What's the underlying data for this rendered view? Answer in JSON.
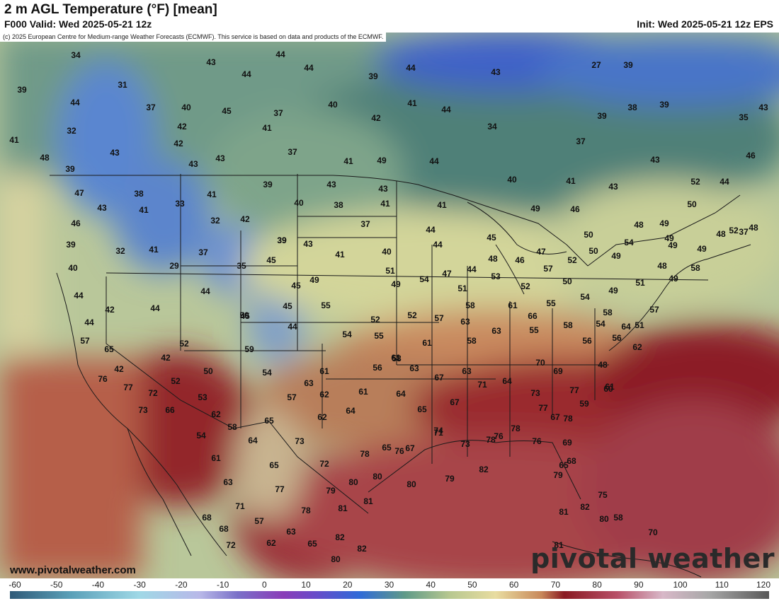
{
  "header": {
    "title": "2 m AGL Temperature (°F) [mean]",
    "valid": "F000 Valid: Wed 2025-05-21 12z",
    "init": "Init: Wed 2025-05-21 12z EPS",
    "copyright": "(c) 2025 European Centre for Medium-range Weather Forecasts (ECMWF). This service is based on data and products of the ECMWF."
  },
  "footer": {
    "website": "www.pivotalweather.com",
    "brand": "pivotal weather"
  },
  "colors": {
    "cold": "#3f68d8",
    "cool": "#7fa2a0",
    "mild": "#d8d8a0",
    "warm": "#c88a5a",
    "hot": "#8f1d28",
    "ocean_warm": "#a8444a"
  },
  "scale": {
    "labels": [
      "-60",
      "-50",
      "-40",
      "-30",
      "-20",
      "-10",
      "0",
      "10",
      "20",
      "30",
      "40",
      "50",
      "60",
      "70",
      "80",
      "90",
      "100",
      "110",
      "120"
    ]
  },
  "temps": [
    {
      "v": "34"
    },
    {
      "v": "44"
    },
    {
      "v": "43"
    },
    {
      "v": "44"
    },
    {
      "v": "44"
    },
    {
      "v": "44"
    },
    {
      "v": "39"
    },
    {
      "v": "43"
    },
    {
      "v": "27"
    },
    {
      "v": "39"
    },
    {
      "v": "39"
    },
    {
      "v": "31"
    },
    {
      "v": "44"
    },
    {
      "v": "37"
    },
    {
      "v": "40"
    },
    {
      "v": "45"
    },
    {
      "v": "40"
    },
    {
      "v": "41"
    },
    {
      "v": "44"
    },
    {
      "v": "37"
    },
    {
      "v": "39"
    },
    {
      "v": "38"
    },
    {
      "v": "39"
    },
    {
      "v": "43"
    },
    {
      "v": "35"
    },
    {
      "v": "32"
    },
    {
      "v": "42"
    },
    {
      "v": "41"
    },
    {
      "v": "42"
    },
    {
      "v": "34"
    },
    {
      "v": "43"
    },
    {
      "v": "42"
    },
    {
      "v": "37"
    },
    {
      "v": "43"
    },
    {
      "v": "37"
    },
    {
      "v": "41"
    },
    {
      "v": "49"
    },
    {
      "v": "44"
    },
    {
      "v": "43"
    },
    {
      "v": "46"
    },
    {
      "v": "41"
    },
    {
      "v": "43"
    },
    {
      "v": "48"
    },
    {
      "v": "39"
    },
    {
      "v": "39"
    },
    {
      "v": "43"
    },
    {
      "v": "43"
    },
    {
      "v": "40"
    },
    {
      "v": "41"
    },
    {
      "v": "43"
    },
    {
      "v": "52"
    },
    {
      "v": "44"
    },
    {
      "v": "47"
    },
    {
      "v": "38"
    },
    {
      "v": "41"
    },
    {
      "v": "40"
    },
    {
      "v": "38"
    },
    {
      "v": "41"
    },
    {
      "v": "41"
    },
    {
      "v": "49"
    },
    {
      "v": "46"
    },
    {
      "v": "50"
    },
    {
      "v": "43"
    },
    {
      "v": "41"
    },
    {
      "v": "33"
    },
    {
      "v": "32"
    },
    {
      "v": "42"
    },
    {
      "v": "37"
    },
    {
      "v": "44"
    },
    {
      "v": "48"
    },
    {
      "v": "49"
    },
    {
      "v": "48"
    },
    {
      "v": "48"
    },
    {
      "v": "46"
    },
    {
      "v": "39"
    },
    {
      "v": "43"
    },
    {
      "v": "45"
    },
    {
      "v": "50"
    },
    {
      "v": "54"
    },
    {
      "v": "49"
    },
    {
      "v": "49"
    },
    {
      "v": "39"
    },
    {
      "v": "32"
    },
    {
      "v": "41"
    },
    {
      "v": "37"
    },
    {
      "v": "39"
    },
    {
      "v": "41"
    },
    {
      "v": "40"
    },
    {
      "v": "44"
    },
    {
      "v": "47"
    },
    {
      "v": "50"
    },
    {
      "v": "49"
    },
    {
      "v": "37"
    },
    {
      "v": "40"
    },
    {
      "v": "29"
    },
    {
      "v": "35"
    },
    {
      "v": "45"
    },
    {
      "v": "51"
    },
    {
      "v": "47"
    },
    {
      "v": "44"
    },
    {
      "v": "48"
    },
    {
      "v": "46"
    },
    {
      "v": "52"
    },
    {
      "v": "48"
    },
    {
      "v": "52"
    },
    {
      "v": "49"
    },
    {
      "v": "58"
    },
    {
      "v": "44"
    },
    {
      "v": "44"
    },
    {
      "v": "45"
    },
    {
      "v": "49"
    },
    {
      "v": "49"
    },
    {
      "v": "54"
    },
    {
      "v": "51"
    },
    {
      "v": "53"
    },
    {
      "v": "52"
    },
    {
      "v": "57"
    },
    {
      "v": "50"
    },
    {
      "v": "49"
    },
    {
      "v": "51"
    },
    {
      "v": "49"
    },
    {
      "v": "42"
    },
    {
      "v": "44"
    },
    {
      "v": "45"
    },
    {
      "v": "45"
    },
    {
      "v": "55"
    },
    {
      "v": "58"
    },
    {
      "v": "61"
    },
    {
      "v": "55"
    },
    {
      "v": "54"
    },
    {
      "v": "58"
    },
    {
      "v": "44"
    },
    {
      "v": "44"
    },
    {
      "v": "50"
    },
    {
      "v": "52"
    },
    {
      "v": "52"
    },
    {
      "v": "57"
    },
    {
      "v": "63"
    },
    {
      "v": "66"
    },
    {
      "v": "58"
    },
    {
      "v": "57"
    },
    {
      "v": "51"
    },
    {
      "v": "57"
    },
    {
      "v": "52"
    },
    {
      "v": "54"
    },
    {
      "v": "55"
    },
    {
      "v": "61"
    },
    {
      "v": "63"
    },
    {
      "v": "55"
    },
    {
      "v": "54"
    },
    {
      "v": "64"
    },
    {
      "v": "65"
    },
    {
      "v": "42"
    },
    {
      "v": "59"
    },
    {
      "v": "58"
    },
    {
      "v": "56"
    },
    {
      "v": "56"
    },
    {
      "v": "61"
    },
    {
      "v": "62"
    },
    {
      "v": "42"
    },
    {
      "v": "50"
    },
    {
      "v": "54"
    },
    {
      "v": "61"
    },
    {
      "v": "56"
    },
    {
      "v": "58"
    },
    {
      "v": "63"
    },
    {
      "v": "67"
    },
    {
      "v": "70"
    },
    {
      "v": "48"
    },
    {
      "v": "76"
    },
    {
      "v": "52"
    },
    {
      "v": "63"
    },
    {
      "v": "63"
    },
    {
      "v": "64"
    },
    {
      "v": "69"
    },
    {
      "v": "61"
    },
    {
      "v": "77"
    },
    {
      "v": "72"
    },
    {
      "v": "53"
    },
    {
      "v": "57"
    },
    {
      "v": "62"
    },
    {
      "v": "61"
    },
    {
      "v": "64"
    },
    {
      "v": "71"
    },
    {
      "v": "73"
    },
    {
      "v": "77"
    },
    {
      "v": "59"
    },
    {
      "v": "73"
    },
    {
      "v": "66"
    },
    {
      "v": "62"
    },
    {
      "v": "62"
    },
    {
      "v": "64"
    },
    {
      "v": "65"
    },
    {
      "v": "67"
    },
    {
      "v": "74"
    },
    {
      "v": "77"
    },
    {
      "v": "60"
    },
    {
      "v": "58"
    },
    {
      "v": "65"
    },
    {
      "v": "73"
    },
    {
      "v": "76"
    },
    {
      "v": "78"
    },
    {
      "v": "67"
    },
    {
      "v": "54"
    },
    {
      "v": "64"
    },
    {
      "v": "65"
    },
    {
      "v": "67"
    },
    {
      "v": "71"
    },
    {
      "v": "73"
    },
    {
      "v": "78"
    },
    {
      "v": "76"
    },
    {
      "v": "78"
    },
    {
      "v": "76"
    },
    {
      "v": "69"
    },
    {
      "v": "61"
    },
    {
      "v": "65"
    },
    {
      "v": "72"
    },
    {
      "v": "78"
    },
    {
      "v": "82"
    },
    {
      "v": "75"
    },
    {
      "v": "68"
    },
    {
      "v": "63"
    },
    {
      "v": "77"
    },
    {
      "v": "79"
    },
    {
      "v": "80"
    },
    {
      "v": "80"
    },
    {
      "v": "80"
    },
    {
      "v": "79"
    },
    {
      "v": "79"
    },
    {
      "v": "65"
    },
    {
      "v": "71"
    },
    {
      "v": "78"
    },
    {
      "v": "81"
    },
    {
      "v": "81"
    },
    {
      "v": "81"
    },
    {
      "v": "82"
    },
    {
      "v": "58"
    },
    {
      "v": "68"
    },
    {
      "v": "68"
    },
    {
      "v": "57"
    },
    {
      "v": "63"
    },
    {
      "v": "82"
    },
    {
      "v": "81"
    },
    {
      "v": "80"
    },
    {
      "v": "70"
    },
    {
      "v": "72"
    },
    {
      "v": "62"
    },
    {
      "v": "65"
    },
    {
      "v": "80"
    },
    {
      "v": "82"
    }
  ]
}
